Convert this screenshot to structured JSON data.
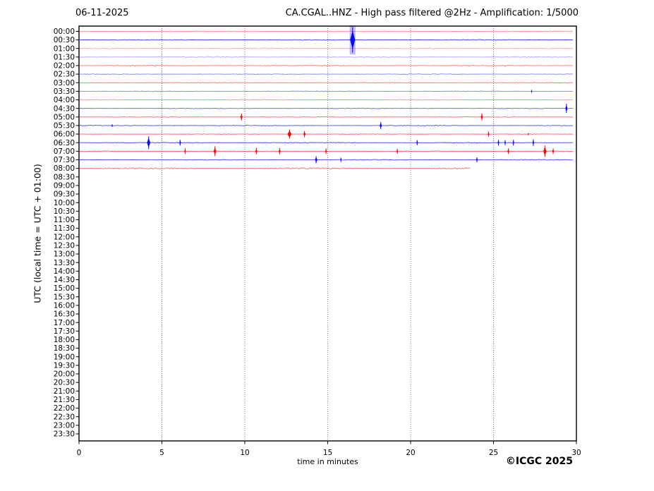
{
  "header": {
    "date": "06-11-2025",
    "title": "CA.CGAL..HNZ - High pass filtered @2Hz - Amplification: 1/5000"
  },
  "footer": {
    "copyright": "©ICGC 2025"
  },
  "chart_data": {
    "type": "line",
    "subtype": "helicorder-seismogram",
    "title": "CA.CGAL..HNZ - High pass filtered @2Hz - Amplification: 1/5000",
    "date": "06-11-2025",
    "xlabel": "time in minutes",
    "ylabel": "UTC (local time = UTC + 01:00)",
    "x_range": [
      0,
      30
    ],
    "x_ticks": [
      0,
      5,
      10,
      15,
      20,
      25,
      30
    ],
    "grid_minutes": [
      5,
      10,
      15,
      20,
      25
    ],
    "grid_on": true,
    "legend": "none",
    "row_labels": [
      "00:00",
      "00:30",
      "01:00",
      "01:30",
      "02:00",
      "02:30",
      "03:00",
      "03:30",
      "04:00",
      "04:30",
      "05:00",
      "05:30",
      "06:00",
      "06:30",
      "07:00",
      "07:30",
      "08:00",
      "08:30",
      "09:00",
      "09:30",
      "10:00",
      "10:30",
      "11:00",
      "11:30",
      "12:00",
      "12:30",
      "13:00",
      "13:30",
      "14:00",
      "14:30",
      "15:00",
      "15:30",
      "16:00",
      "16:30",
      "17:00",
      "17:30",
      "18:00",
      "18:30",
      "19:00",
      "19:30",
      "20:00",
      "20:30",
      "21:00",
      "21:30",
      "22:00",
      "22:30",
      "23:00",
      "23:30"
    ],
    "colors": {
      "red": "#ff0000",
      "blue": "#0000ff",
      "grid": "#555555",
      "frame": "#000000",
      "text": "#000000"
    },
    "traces": [
      {
        "time": "00:00",
        "color": "red",
        "opacity": 0.45,
        "noise": 0.5,
        "start_min": 0,
        "end_min": 29.85
      },
      {
        "time": "00:30",
        "color": "blue",
        "opacity": 0.8,
        "noise": 0.5,
        "start_min": 0,
        "end_min": 29.85
      },
      {
        "time": "01:00",
        "color": "red",
        "opacity": 0.35,
        "noise": 0.7,
        "start_min": 0,
        "end_min": 29.85
      },
      {
        "time": "01:30",
        "color": "blue",
        "opacity": 0.35,
        "noise": 0.7,
        "start_min": 0,
        "end_min": 29.85
      },
      {
        "time": "02:00",
        "color": "red",
        "opacity": 0.55,
        "noise": 0.6,
        "start_min": 0,
        "end_min": 29.85
      },
      {
        "time": "02:30",
        "color": "blue",
        "opacity": 0.5,
        "noise": 0.5,
        "start_min": 0,
        "end_min": 29.85
      },
      {
        "time": "03:00",
        "color": "red",
        "opacity": 0.55,
        "noise": 0.5,
        "start_min": 0,
        "end_min": 29.85
      },
      {
        "time": "03:30",
        "color": "blue",
        "opacity": 0.5,
        "noise": 0.5,
        "start_min": 0,
        "end_min": 29.85
      },
      {
        "time": "04:00",
        "color": "red",
        "opacity": 0.45,
        "noise": 0.5,
        "start_min": 0,
        "end_min": 29.85
      },
      {
        "time": "04:30",
        "color": "blue",
        "opacity": 0.6,
        "noise": 0.5,
        "start_min": 0,
        "end_min": 29.85
      },
      {
        "time": "05:00",
        "color": "red",
        "opacity": 0.6,
        "noise": 0.5,
        "start_min": 0,
        "end_min": 29.85
      },
      {
        "time": "05:30",
        "color": "blue",
        "opacity": 0.7,
        "noise": 0.5,
        "start_min": 0,
        "end_min": 29.85
      },
      {
        "time": "06:00",
        "color": "red",
        "opacity": 0.6,
        "noise": 0.5,
        "start_min": 0,
        "end_min": 29.85
      },
      {
        "time": "06:30",
        "color": "blue",
        "opacity": 0.75,
        "noise": 0.5,
        "start_min": 0,
        "end_min": 29.85
      },
      {
        "time": "07:00",
        "color": "red",
        "opacity": 0.65,
        "noise": 0.5,
        "start_min": 0,
        "end_min": 29.85
      },
      {
        "time": "07:30",
        "color": "blue",
        "opacity": 0.75,
        "noise": 0.5,
        "start_min": 0,
        "end_min": 29.85
      },
      {
        "time": "08:00",
        "color": "red",
        "opacity": 0.6,
        "noise": 1.0,
        "start_min": 0,
        "end_min": 23.7
      }
    ],
    "events": [
      {
        "time": "00:30",
        "minute": 16.5,
        "color": "blue",
        "amp": 18,
        "w": 3.5
      },
      {
        "time": "03:30",
        "minute": 27.3,
        "color": "blue",
        "amp": 2,
        "w": 0.8
      },
      {
        "time": "04:30",
        "minute": 29.4,
        "color": "blue",
        "amp": 6.5,
        "w": 1.6
      },
      {
        "time": "05:00",
        "minute": 9.8,
        "color": "red",
        "amp": 5,
        "w": 1.6
      },
      {
        "time": "05:00",
        "minute": 24.3,
        "color": "red",
        "amp": 5,
        "w": 1.6
      },
      {
        "time": "05:30",
        "minute": 2.0,
        "color": "blue",
        "amp": 1.8,
        "w": 0.8
      },
      {
        "time": "05:30",
        "minute": 18.2,
        "color": "blue",
        "amp": 5,
        "w": 1.6
      },
      {
        "time": "06:00",
        "minute": 12.7,
        "color": "red",
        "amp": 6.5,
        "w": 3.0
      },
      {
        "time": "06:00",
        "minute": 13.6,
        "color": "red",
        "amp": 4.5,
        "w": 1.6
      },
      {
        "time": "06:00",
        "minute": 24.7,
        "color": "red",
        "amp": 3.5,
        "w": 1.2
      },
      {
        "time": "06:00",
        "minute": 27.1,
        "color": "red",
        "amp": 1.5,
        "w": 0.8
      },
      {
        "time": "06:30",
        "minute": 4.2,
        "color": "blue",
        "amp": 9,
        "w": 2.4
      },
      {
        "time": "06:30",
        "minute": 6.1,
        "color": "blue",
        "amp": 4,
        "w": 1.2
      },
      {
        "time": "06:30",
        "minute": 20.4,
        "color": "blue",
        "amp": 3.5,
        "w": 1.2
      },
      {
        "time": "06:30",
        "minute": 25.3,
        "color": "blue",
        "amp": 4,
        "w": 1.2
      },
      {
        "time": "06:30",
        "minute": 25.7,
        "color": "blue",
        "amp": 3.5,
        "w": 1.0
      },
      {
        "time": "06:30",
        "minute": 26.2,
        "color": "blue",
        "amp": 4,
        "w": 1.2
      },
      {
        "time": "06:30",
        "minute": 27.4,
        "color": "blue",
        "amp": 4.5,
        "w": 1.2
      },
      {
        "time": "07:00",
        "minute": 6.4,
        "color": "red",
        "amp": 4,
        "w": 1.2
      },
      {
        "time": "07:00",
        "minute": 8.2,
        "color": "red",
        "amp": 7,
        "w": 2.0
      },
      {
        "time": "07:00",
        "minute": 10.7,
        "color": "red",
        "amp": 4.5,
        "w": 1.5
      },
      {
        "time": "07:00",
        "minute": 12.1,
        "color": "red",
        "amp": 4.5,
        "w": 1.5
      },
      {
        "time": "07:00",
        "minute": 14.9,
        "color": "red",
        "amp": 4,
        "w": 1.2
      },
      {
        "time": "07:00",
        "minute": 19.2,
        "color": "red",
        "amp": 3.5,
        "w": 1.2
      },
      {
        "time": "07:00",
        "minute": 25.9,
        "color": "red",
        "amp": 4,
        "w": 1.5
      },
      {
        "time": "07:00",
        "minute": 28.1,
        "color": "red",
        "amp": 8,
        "w": 2.4
      },
      {
        "time": "07:00",
        "minute": 28.6,
        "color": "red",
        "amp": 4,
        "w": 1.4
      },
      {
        "time": "07:30",
        "minute": 14.3,
        "color": "blue",
        "amp": 5,
        "w": 1.8
      },
      {
        "time": "07:30",
        "minute": 15.8,
        "color": "blue",
        "amp": 3,
        "w": 1.0
      },
      {
        "time": "07:30",
        "minute": 24.0,
        "color": "blue",
        "amp": 3.5,
        "w": 1.2
      }
    ]
  }
}
